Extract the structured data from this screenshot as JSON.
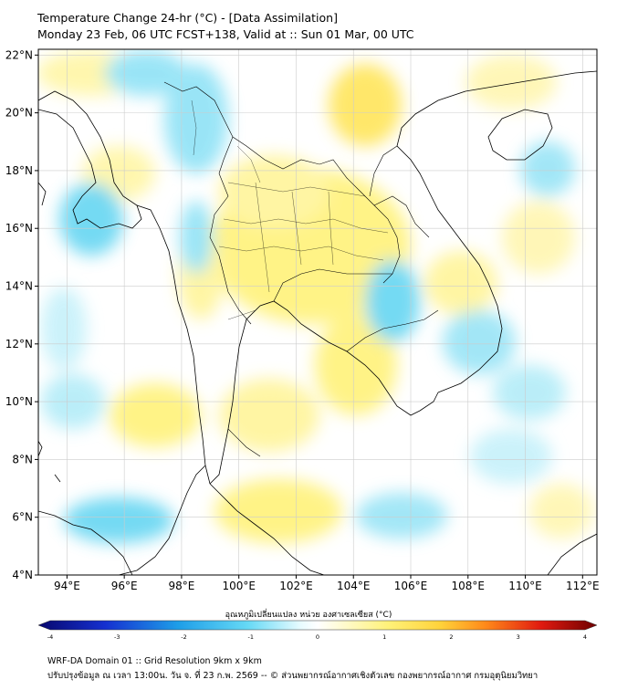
{
  "title": {
    "line1": "Temperature Change 24-hr (°C) - [Data Assimilation]",
    "line2": "Monday 23 Feb, 06 UTC FCST+138, Valid at :: Sun 01 Mar, 00 UTC"
  },
  "map": {
    "lon_range": [
      93,
      112.5
    ],
    "lat_range": [
      4,
      22.2
    ],
    "lon_ticks": [
      "94°E",
      "96°E",
      "98°E",
      "100°E",
      "102°E",
      "104°E",
      "106°E",
      "108°E",
      "110°E",
      "112°E"
    ],
    "lat_ticks": [
      "22°N",
      "20°N",
      "18°N",
      "16°N",
      "14°N",
      "12°N",
      "10°N",
      "8°N",
      "6°N",
      "4°N"
    ],
    "colors": {
      "warm": "#fff27a",
      "cool": "#66d6f2",
      "neutral": "#ffffff",
      "coast": "#000000",
      "grid": "#cccccc"
    }
  },
  "colorbar": {
    "label": "อุณหภูมิเปลี่ยนแปลง หน่วย องศาเซลเซียส (°C)",
    "min": -4,
    "max": 4,
    "ticks": [
      "-4",
      "-3",
      "-2",
      "-1",
      "0",
      "1",
      "2",
      "3",
      "4"
    ]
  },
  "footer": {
    "line1": "WRF-DA Domain 01 :: Grid Resolution 9km x 9km",
    "line2": "ปรับปรุงข้อมูล ณ เวลา 13:00น. วัน จ. ที่ 23 ก.พ. 2569 -- © ส่วนพยากรณ์อากาศเชิงตัวเลข กองพยากรณ์อากาศ กรมอุตุนิยมวิทยา"
  }
}
